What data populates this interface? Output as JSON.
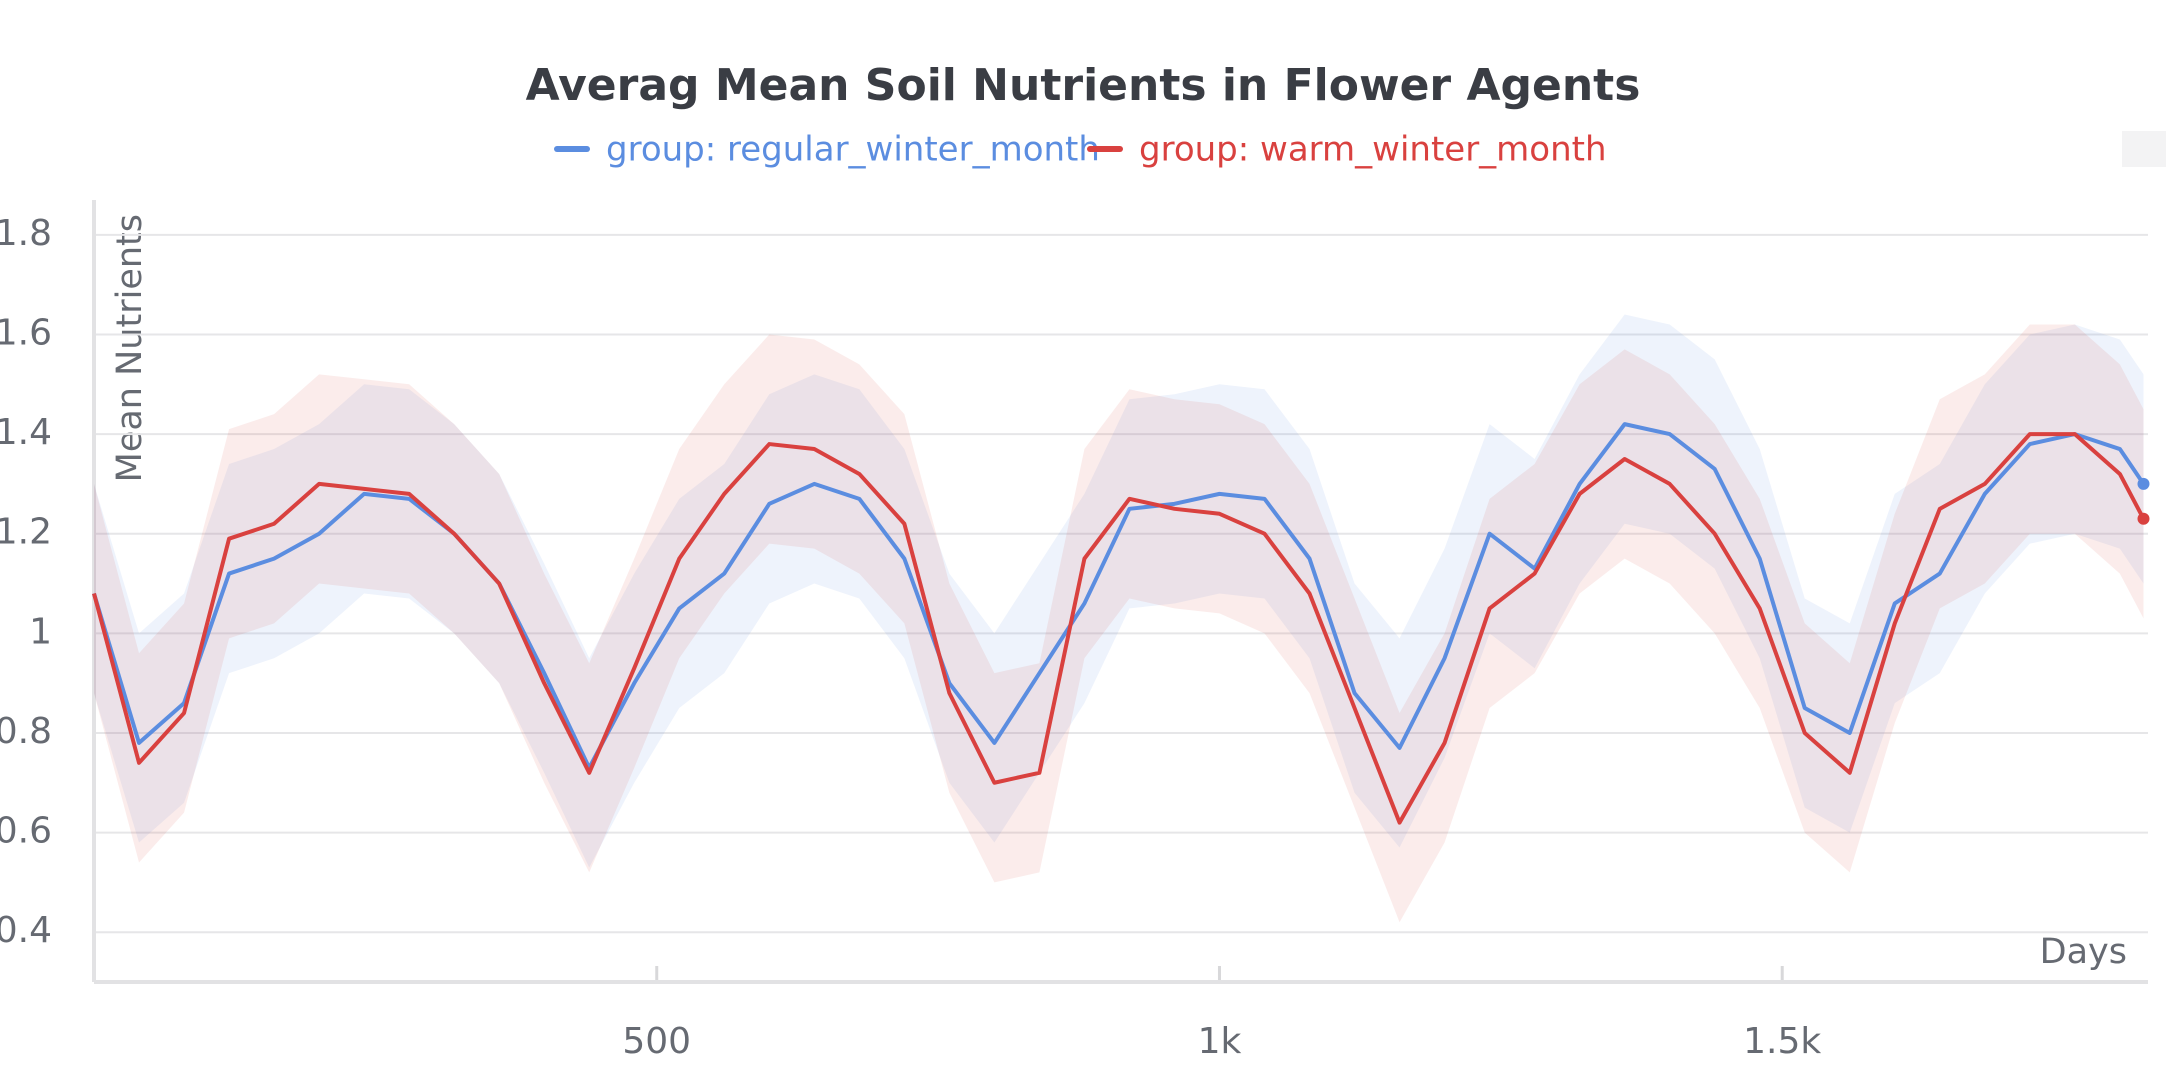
{
  "chart_data": {
    "type": "line",
    "title": "Averag Mean Soil Nutrients in Flower Agents",
    "x_label": "Days",
    "y_label": "Mean Nutrients",
    "x": [
      0,
      40,
      80,
      120,
      160,
      200,
      240,
      280,
      320,
      360,
      400,
      440,
      480,
      520,
      560,
      600,
      640,
      680,
      720,
      760,
      800,
      840,
      880,
      920,
      960,
      1000,
      1040,
      1080,
      1120,
      1160,
      1200,
      1240,
      1280,
      1320,
      1360,
      1400,
      1440,
      1480,
      1520,
      1560,
      1600,
      1640,
      1680,
      1720,
      1760,
      1800,
      1821
    ],
    "series": [
      {
        "name": "group: regular_winter_month",
        "color": "#5b8de0",
        "values": [
          1.08,
          0.78,
          0.86,
          1.12,
          1.15,
          1.2,
          1.28,
          1.27,
          1.2,
          1.1,
          0.92,
          0.73,
          0.9,
          1.05,
          1.12,
          1.26,
          1.3,
          1.27,
          1.15,
          0.9,
          0.78,
          0.92,
          1.06,
          1.25,
          1.26,
          1.28,
          1.27,
          1.15,
          0.88,
          0.77,
          0.95,
          1.2,
          1.13,
          1.3,
          1.42,
          1.4,
          1.33,
          1.15,
          0.85,
          0.8,
          1.06,
          1.12,
          1.28,
          1.38,
          1.4,
          1.37,
          1.3
        ],
        "lower": [
          0.88,
          0.58,
          0.66,
          0.92,
          0.95,
          1.0,
          1.08,
          1.07,
          1.0,
          0.9,
          0.72,
          0.53,
          0.7,
          0.85,
          0.92,
          1.06,
          1.1,
          1.07,
          0.95,
          0.7,
          0.58,
          0.72,
          0.86,
          1.05,
          1.06,
          1.08,
          1.07,
          0.95,
          0.68,
          0.57,
          0.75,
          1.0,
          0.93,
          1.1,
          1.22,
          1.2,
          1.13,
          0.95,
          0.65,
          0.6,
          0.86,
          0.92,
          1.08,
          1.18,
          1.2,
          1.17,
          1.1
        ],
        "upper": [
          1.3,
          1.0,
          1.08,
          1.34,
          1.37,
          1.42,
          1.5,
          1.49,
          1.42,
          1.32,
          1.14,
          0.95,
          1.12,
          1.27,
          1.34,
          1.48,
          1.52,
          1.49,
          1.37,
          1.12,
          1.0,
          1.14,
          1.28,
          1.47,
          1.48,
          1.5,
          1.49,
          1.37,
          1.1,
          0.99,
          1.17,
          1.42,
          1.35,
          1.52,
          1.64,
          1.62,
          1.55,
          1.37,
          1.07,
          1.02,
          1.28,
          1.34,
          1.5,
          1.6,
          1.62,
          1.59,
          1.52
        ]
      },
      {
        "name": "group: warm_winter_month",
        "color": "#d9413f",
        "values": [
          1.08,
          0.74,
          0.84,
          1.19,
          1.22,
          1.3,
          1.29,
          1.28,
          1.2,
          1.1,
          0.9,
          0.72,
          0.93,
          1.15,
          1.28,
          1.38,
          1.37,
          1.32,
          1.22,
          0.88,
          0.7,
          0.72,
          1.15,
          1.27,
          1.25,
          1.24,
          1.2,
          1.08,
          0.85,
          0.62,
          0.78,
          1.05,
          1.12,
          1.28,
          1.35,
          1.3,
          1.2,
          1.05,
          0.8,
          0.72,
          1.02,
          1.25,
          1.3,
          1.4,
          1.4,
          1.32,
          1.23
        ],
        "lower": [
          0.88,
          0.54,
          0.64,
          0.99,
          1.02,
          1.1,
          1.09,
          1.08,
          1.0,
          0.9,
          0.7,
          0.52,
          0.73,
          0.95,
          1.08,
          1.18,
          1.17,
          1.12,
          1.02,
          0.68,
          0.5,
          0.52,
          0.95,
          1.07,
          1.05,
          1.04,
          1.0,
          0.88,
          0.65,
          0.42,
          0.58,
          0.85,
          0.92,
          1.08,
          1.15,
          1.1,
          1.0,
          0.85,
          0.6,
          0.52,
          0.82,
          1.05,
          1.1,
          1.2,
          1.2,
          1.12,
          1.03
        ],
        "upper": [
          1.3,
          0.96,
          1.06,
          1.41,
          1.44,
          1.52,
          1.51,
          1.5,
          1.42,
          1.32,
          1.12,
          0.94,
          1.15,
          1.37,
          1.5,
          1.6,
          1.59,
          1.54,
          1.44,
          1.1,
          0.92,
          0.94,
          1.37,
          1.49,
          1.47,
          1.46,
          1.42,
          1.3,
          1.07,
          0.84,
          1.0,
          1.27,
          1.34,
          1.5,
          1.57,
          1.52,
          1.42,
          1.27,
          1.02,
          0.94,
          1.24,
          1.47,
          1.52,
          1.62,
          1.62,
          1.54,
          1.45
        ]
      }
    ],
    "xlim": [
      0,
      1825
    ],
    "ylim": [
      0.3,
      1.87
    ],
    "xticks": [
      500,
      {
        "value": 1000,
        "label": "1k"
      },
      {
        "value": 1500,
        "label": "1.5k"
      }
    ],
    "yticks": [
      0.4,
      0.6,
      0.8,
      1,
      1.2,
      1.4,
      1.6,
      1.8
    ],
    "grid": true
  }
}
